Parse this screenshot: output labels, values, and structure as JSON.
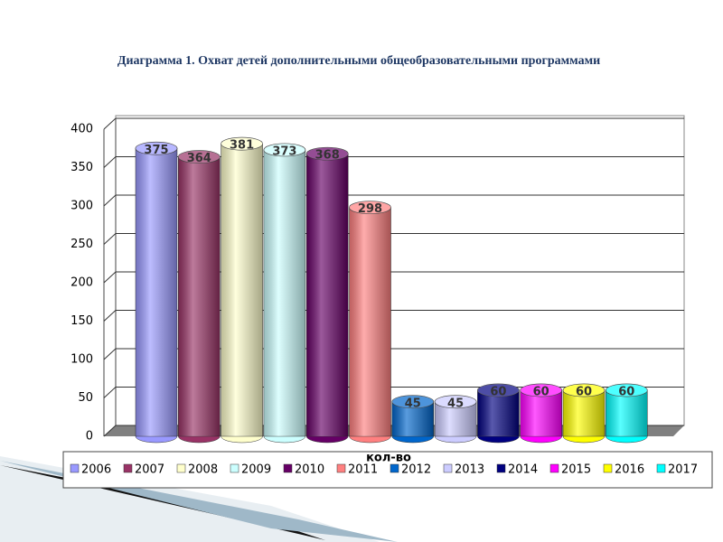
{
  "chart_data": {
    "type": "bar",
    "title": "Диаграмма 1. Охват детей дополнительными общеобразовательными программами",
    "categories": [
      "кол-во"
    ],
    "series": [
      {
        "name": "2006",
        "color": "#9999ff",
        "values": [
          375
        ]
      },
      {
        "name": "2007",
        "color": "#993366",
        "values": [
          364
        ]
      },
      {
        "name": "2008",
        "color": "#ffffcc",
        "values": [
          381
        ]
      },
      {
        "name": "2009",
        "color": "#ccffff",
        "values": [
          373
        ]
      },
      {
        "name": "2010",
        "color": "#660066",
        "values": [
          368
        ]
      },
      {
        "name": "2011",
        "color": "#ff8080",
        "values": [
          298
        ]
      },
      {
        "name": "2012",
        "color": "#0066cc",
        "values": [
          45
        ]
      },
      {
        "name": "2013",
        "color": "#ccccff",
        "values": [
          45
        ]
      },
      {
        "name": "2014",
        "color": "#000080",
        "values": [
          60
        ]
      },
      {
        "name": "2015",
        "color": "#ff00ff",
        "values": [
          60
        ]
      },
      {
        "name": "2016",
        "color": "#ffff00",
        "values": [
          60
        ]
      },
      {
        "name": "2017",
        "color": "#00ffff",
        "values": [
          60
        ]
      }
    ],
    "ylim": [
      0,
      400
    ],
    "yticks": [
      0,
      50,
      100,
      150,
      200,
      250,
      300,
      350,
      400
    ],
    "grid": true,
    "legend": "bottom"
  }
}
